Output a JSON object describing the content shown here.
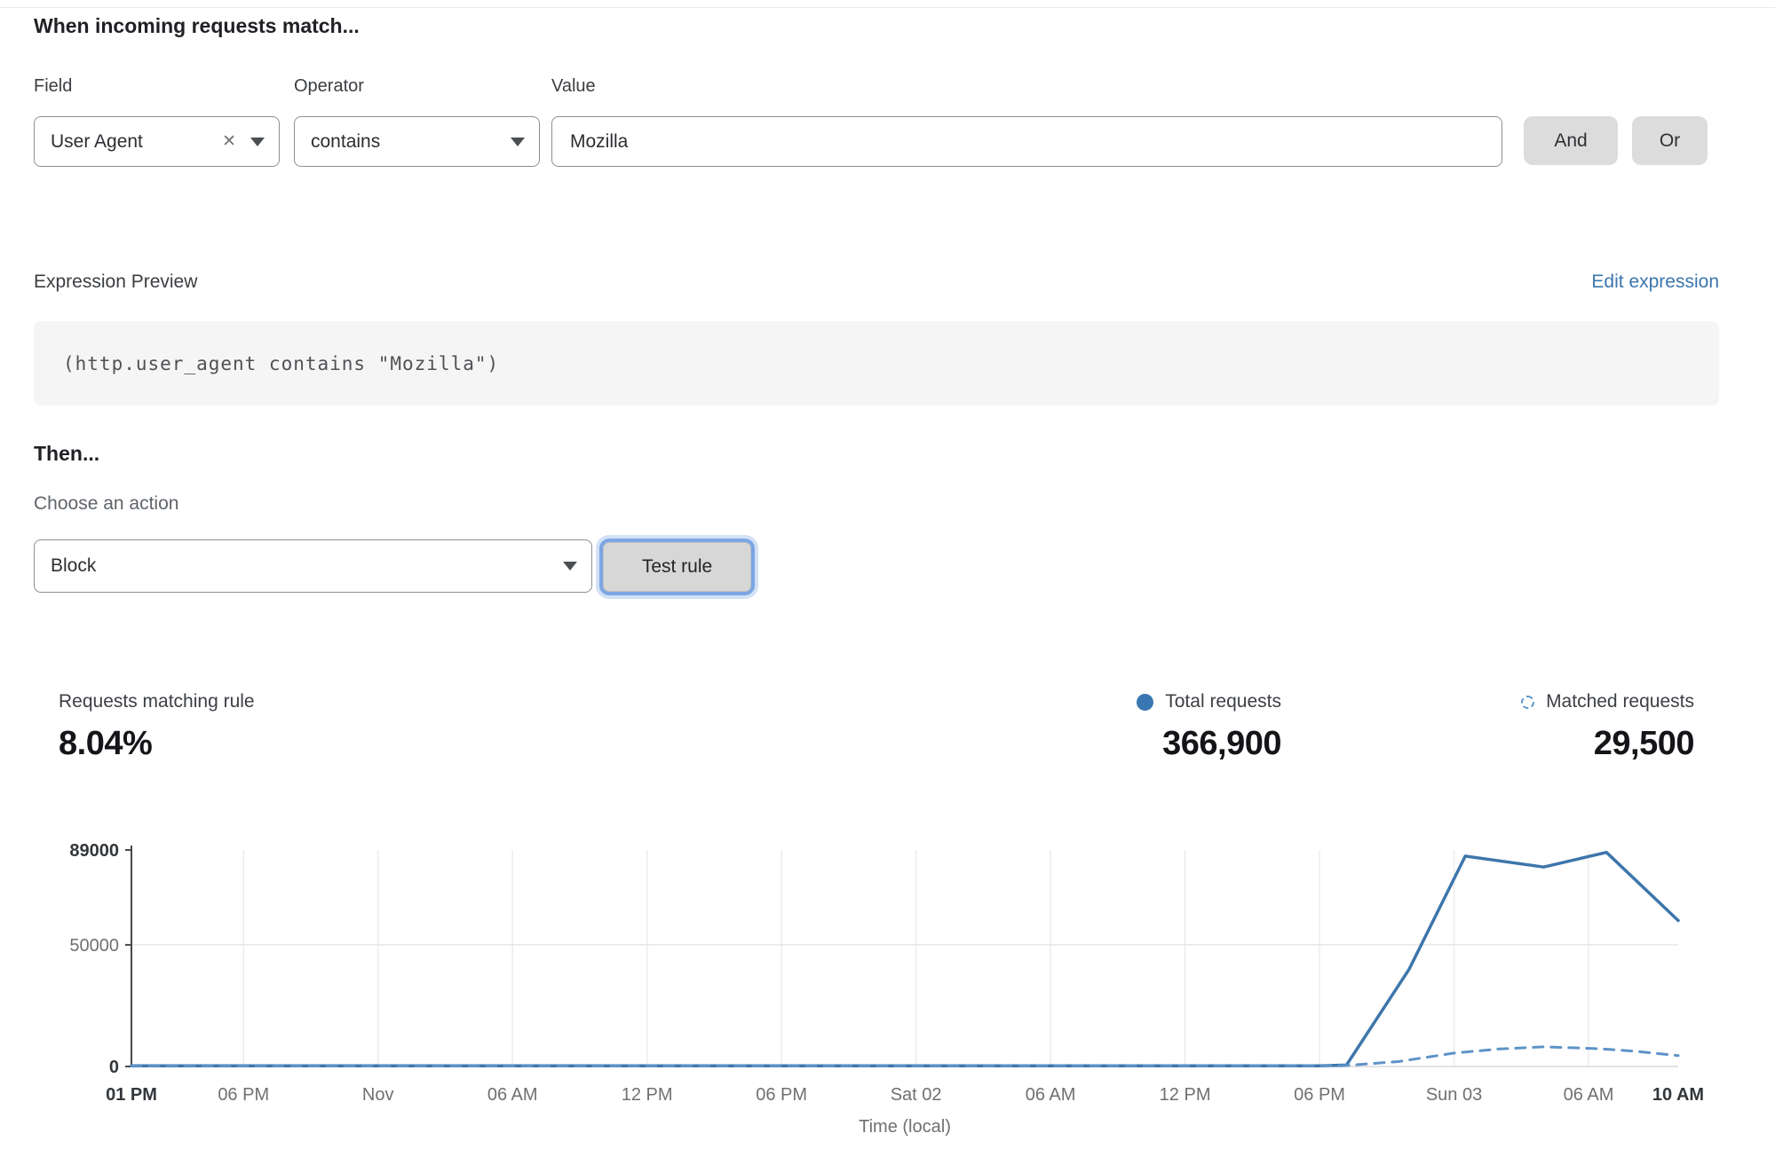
{
  "header": {
    "title": "When incoming requests match..."
  },
  "rule_builder": {
    "field_label": "Field",
    "operator_label": "Operator",
    "value_label": "Value",
    "field_value": "User Agent",
    "operator_value": "contains",
    "value_value": "Mozilla",
    "clear_icon": "✕",
    "and_label": "And",
    "or_label": "Or"
  },
  "expression": {
    "preview_label": "Expression Preview",
    "edit_link": "Edit expression",
    "code": "(http.user_agent contains \"Mozilla\")"
  },
  "action": {
    "then_label": "Then...",
    "choose_label": "Choose an action",
    "selected_action": "Block",
    "test_button": "Test rule"
  },
  "stats": {
    "matching_label": "Requests matching rule",
    "matching_value": "8.04%",
    "total_label": "Total requests",
    "total_value": "366,900",
    "matched_label": "Matched requests",
    "matched_value": "29,500"
  },
  "colors": {
    "accent_link": "#3b76ae",
    "line_total": "#3d76ab",
    "line_matched": "#5e93c7",
    "grid": "#ececec",
    "axis": "#4a4a4a",
    "tick_bold": "#33373b",
    "tick_normal": "#707070"
  },
  "chart_data": {
    "type": "line",
    "title": "",
    "xlabel": "Time (local)",
    "ylabel": "",
    "ylim": [
      0,
      89000
    ],
    "yticks": [
      0,
      50000,
      89000
    ],
    "x_range": [
      0,
      69
    ],
    "grid": true,
    "legend_position": "top-right-stats",
    "x_ticks": [
      {
        "label": "01 PM",
        "hour": 0,
        "bold": true
      },
      {
        "label": "06 PM",
        "hour": 5,
        "bold": false
      },
      {
        "label": "Nov",
        "hour": 11,
        "bold": false
      },
      {
        "label": "06 AM",
        "hour": 17,
        "bold": false
      },
      {
        "label": "12 PM",
        "hour": 23,
        "bold": false
      },
      {
        "label": "06 PM",
        "hour": 29,
        "bold": false
      },
      {
        "label": "Sat 02",
        "hour": 35,
        "bold": false
      },
      {
        "label": "06 AM",
        "hour": 41,
        "bold": false
      },
      {
        "label": "12 PM",
        "hour": 47,
        "bold": false
      },
      {
        "label": "06 PM",
        "hour": 53,
        "bold": false
      },
      {
        "label": "Sun 03",
        "hour": 59,
        "bold": false
      },
      {
        "label": "06 AM",
        "hour": 65,
        "bold": false
      },
      {
        "label": "10 AM",
        "hour": 69,
        "bold": true
      }
    ],
    "series": [
      {
        "name": "Total requests",
        "style": "solid",
        "color": "#3d76ab",
        "points": [
          [
            0,
            300
          ],
          [
            53,
            300
          ],
          [
            54.2,
            600
          ],
          [
            57,
            40000
          ],
          [
            59.5,
            86500
          ],
          [
            63,
            82000
          ],
          [
            65.8,
            88000
          ],
          [
            69,
            60000
          ]
        ]
      },
      {
        "name": "Matched requests",
        "style": "dashed",
        "color": "#5e93c7",
        "points": [
          [
            0,
            150
          ],
          [
            54,
            300
          ],
          [
            56.5,
            2000
          ],
          [
            59,
            5500
          ],
          [
            61,
            7200
          ],
          [
            63,
            8100
          ],
          [
            65.5,
            7300
          ],
          [
            67,
            6300
          ],
          [
            69,
            4500
          ]
        ]
      }
    ]
  }
}
